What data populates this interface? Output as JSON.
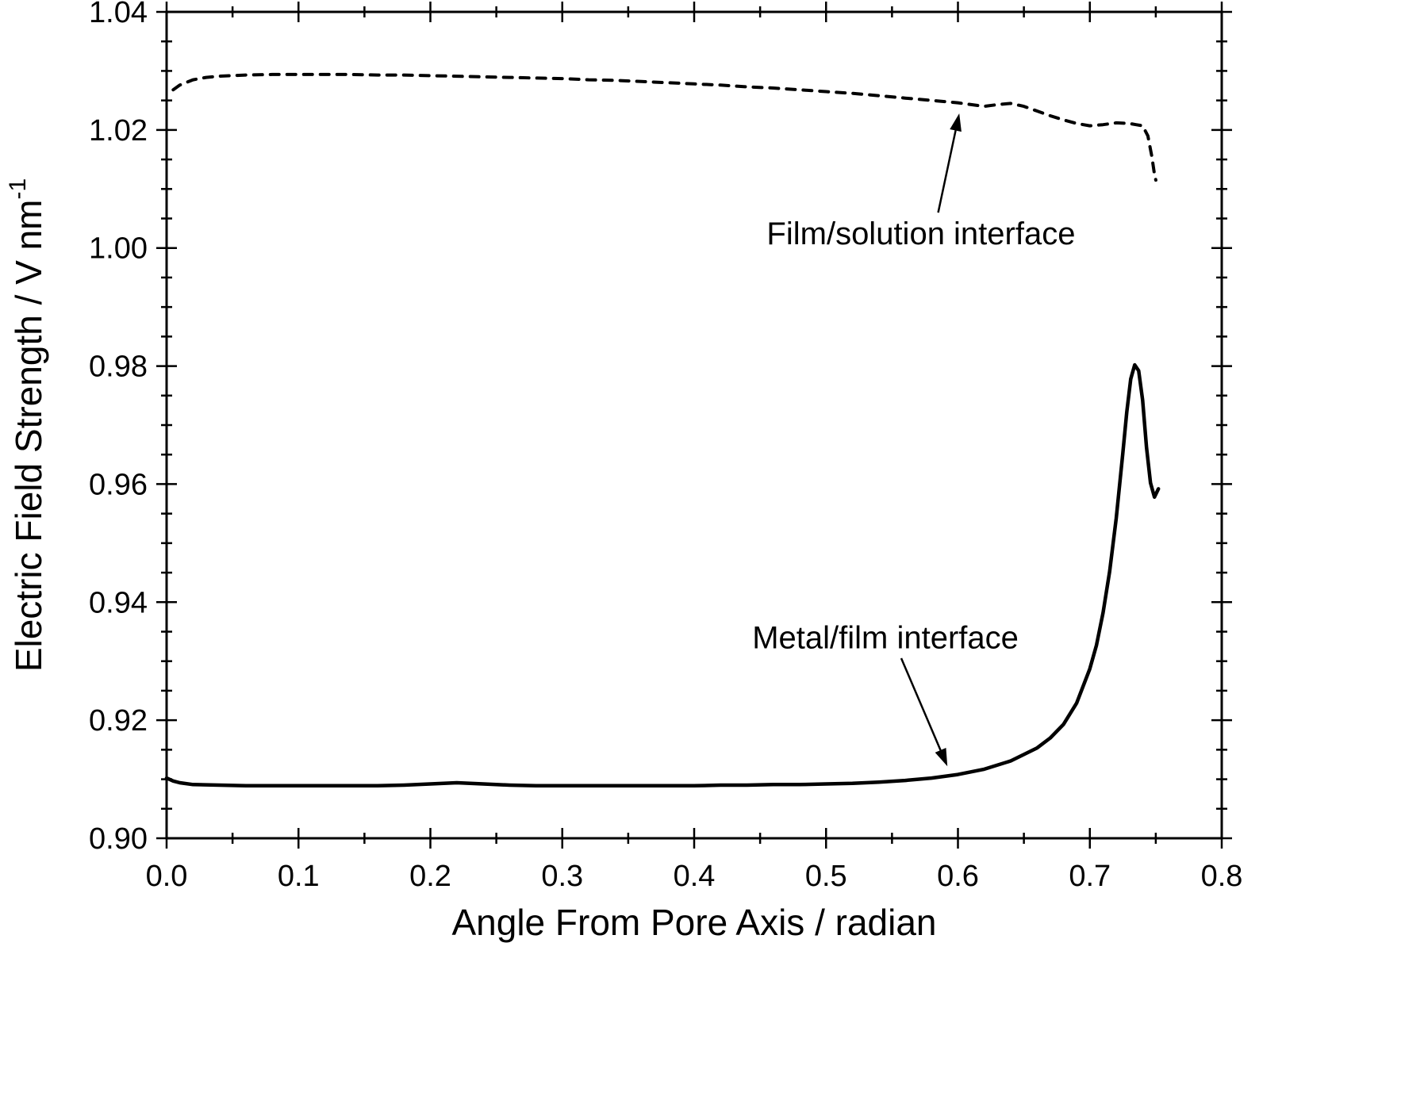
{
  "chart_data": {
    "type": "line",
    "title": "",
    "xlabel": "Angle From Pore Axis / radian",
    "ylabel": "Electric Field Strength / V nm",
    "ylabel_superscript": "-1",
    "xlim": [
      0.0,
      0.8
    ],
    "ylim": [
      0.9,
      1.04
    ],
    "grid": false,
    "frame": true,
    "legend_position": "none",
    "colors": {
      "line": "#000000",
      "background": "#ffffff"
    },
    "x_major_ticks": [
      {
        "v": 0.0,
        "label": "0.0"
      },
      {
        "v": 0.1,
        "label": "0.1"
      },
      {
        "v": 0.2,
        "label": "0.2"
      },
      {
        "v": 0.3,
        "label": "0.3"
      },
      {
        "v": 0.4,
        "label": "0.4"
      },
      {
        "v": 0.5,
        "label": "0.5"
      },
      {
        "v": 0.6,
        "label": "0.6"
      },
      {
        "v": 0.7,
        "label": "0.7"
      },
      {
        "v": 0.8,
        "label": "0.8"
      }
    ],
    "x_minor_step": 0.05,
    "y_major_ticks": [
      {
        "v": 0.9,
        "label": "0.90"
      },
      {
        "v": 0.92,
        "label": "0.92"
      },
      {
        "v": 0.94,
        "label": "0.94"
      },
      {
        "v": 0.96,
        "label": "0.96"
      },
      {
        "v": 0.98,
        "label": "0.98"
      },
      {
        "v": 1.0,
        "label": "1.00"
      },
      {
        "v": 1.02,
        "label": "1.02"
      },
      {
        "v": 1.04,
        "label": "1.04"
      }
    ],
    "y_minor_step": 0.005,
    "series": [
      {
        "name": "Film/solution interface",
        "style": "dashed",
        "points": [
          [
            0.005,
            1.0268
          ],
          [
            0.01,
            1.0276
          ],
          [
            0.02,
            1.0285
          ],
          [
            0.03,
            1.0289
          ],
          [
            0.04,
            1.0291
          ],
          [
            0.06,
            1.0293
          ],
          [
            0.08,
            1.0294
          ],
          [
            0.1,
            1.0294
          ],
          [
            0.12,
            1.0294
          ],
          [
            0.14,
            1.0294
          ],
          [
            0.16,
            1.0293
          ],
          [
            0.18,
            1.0293
          ],
          [
            0.2,
            1.0292
          ],
          [
            0.22,
            1.0291
          ],
          [
            0.24,
            1.029
          ],
          [
            0.26,
            1.0289
          ],
          [
            0.28,
            1.0288
          ],
          [
            0.3,
            1.0287
          ],
          [
            0.32,
            1.0285
          ],
          [
            0.34,
            1.0284
          ],
          [
            0.36,
            1.0282
          ],
          [
            0.38,
            1.028
          ],
          [
            0.4,
            1.0278
          ],
          [
            0.42,
            1.0276
          ],
          [
            0.44,
            1.0273
          ],
          [
            0.46,
            1.0271
          ],
          [
            0.48,
            1.0268
          ],
          [
            0.5,
            1.0265
          ],
          [
            0.52,
            1.0262
          ],
          [
            0.54,
            1.0258
          ],
          [
            0.56,
            1.0254
          ],
          [
            0.58,
            1.025
          ],
          [
            0.6,
            1.0246
          ],
          [
            0.61,
            1.0243
          ],
          [
            0.62,
            1.024
          ],
          [
            0.63,
            1.0243
          ],
          [
            0.64,
            1.0245
          ],
          [
            0.65,
            1.024
          ],
          [
            0.66,
            1.0232
          ],
          [
            0.67,
            1.0224
          ],
          [
            0.68,
            1.0217
          ],
          [
            0.69,
            1.0211
          ],
          [
            0.7,
            1.0207
          ],
          [
            0.71,
            1.0209
          ],
          [
            0.72,
            1.0212
          ],
          [
            0.73,
            1.0211
          ],
          [
            0.735,
            1.0209
          ],
          [
            0.74,
            1.0207
          ],
          [
            0.744,
            1.019
          ],
          [
            0.747,
            1.0155
          ],
          [
            0.749,
            1.0125
          ],
          [
            0.75,
            1.0115
          ]
        ]
      },
      {
        "name": "Metal/film interface",
        "style": "solid",
        "points": [
          [
            0.0,
            0.9102
          ],
          [
            0.005,
            0.9097
          ],
          [
            0.01,
            0.9094
          ],
          [
            0.02,
            0.9091
          ],
          [
            0.04,
            0.909
          ],
          [
            0.06,
            0.9089
          ],
          [
            0.08,
            0.9089
          ],
          [
            0.1,
            0.9089
          ],
          [
            0.12,
            0.9089
          ],
          [
            0.14,
            0.9089
          ],
          [
            0.16,
            0.9089
          ],
          [
            0.18,
            0.909
          ],
          [
            0.2,
            0.9092
          ],
          [
            0.22,
            0.9094
          ],
          [
            0.24,
            0.9092
          ],
          [
            0.26,
            0.909
          ],
          [
            0.28,
            0.9089
          ],
          [
            0.3,
            0.9089
          ],
          [
            0.32,
            0.9089
          ],
          [
            0.34,
            0.9089
          ],
          [
            0.36,
            0.9089
          ],
          [
            0.38,
            0.9089
          ],
          [
            0.4,
            0.9089
          ],
          [
            0.42,
            0.909
          ],
          [
            0.44,
            0.909
          ],
          [
            0.46,
            0.9091
          ],
          [
            0.48,
            0.9091
          ],
          [
            0.5,
            0.9092
          ],
          [
            0.52,
            0.9093
          ],
          [
            0.54,
            0.9095
          ],
          [
            0.56,
            0.9098
          ],
          [
            0.58,
            0.9102
          ],
          [
            0.6,
            0.9108
          ],
          [
            0.62,
            0.9117
          ],
          [
            0.64,
            0.9131
          ],
          [
            0.66,
            0.9153
          ],
          [
            0.67,
            0.917
          ],
          [
            0.68,
            0.9193
          ],
          [
            0.69,
            0.9229
          ],
          [
            0.7,
            0.9287
          ],
          [
            0.705,
            0.9327
          ],
          [
            0.71,
            0.9382
          ],
          [
            0.715,
            0.9452
          ],
          [
            0.72,
            0.9542
          ],
          [
            0.725,
            0.9652
          ],
          [
            0.728,
            0.9722
          ],
          [
            0.731,
            0.9778
          ],
          [
            0.734,
            0.9802
          ],
          [
            0.737,
            0.9792
          ],
          [
            0.74,
            0.9742
          ],
          [
            0.743,
            0.9662
          ],
          [
            0.746,
            0.9602
          ],
          [
            0.749,
            0.9578
          ],
          [
            0.752,
            0.9592
          ]
        ]
      }
    ],
    "annotations": [
      {
        "text": "Film/solution interface",
        "text_x": 0.572,
        "text_y": 1.0024,
        "arrow_from_x": 0.585,
        "arrow_from_y": 1.006,
        "arrow_to_x": 0.601,
        "arrow_to_y": 1.0228
      },
      {
        "text": "Metal/film interface",
        "text_x": 0.545,
        "text_y": 0.9339,
        "arrow_from_x": 0.557,
        "arrow_from_y": 0.9305,
        "arrow_to_x": 0.592,
        "arrow_to_y": 0.9122
      }
    ]
  }
}
